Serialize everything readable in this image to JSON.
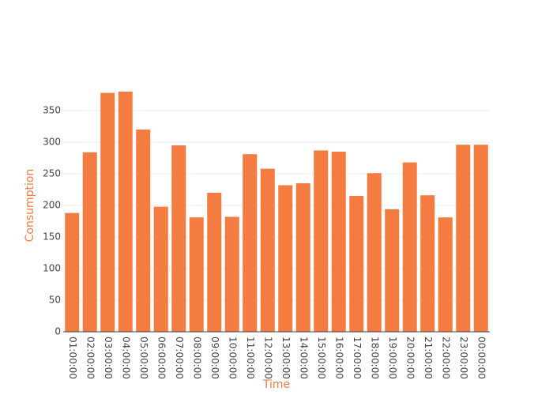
{
  "chart_data": {
    "type": "bar",
    "x_label": "Time",
    "y_label": "Consumption",
    "categories": [
      "01:00:00",
      "02:00:00",
      "03:00:00",
      "04:00:00",
      "05:00:00",
      "06:00:00",
      "07:00:00",
      "08:00:00",
      "09:00:00",
      "10:00:00",
      "11:00:00",
      "12:00:00",
      "13:00:00",
      "14:00:00",
      "15:00:00",
      "16:00:00",
      "17:00:00",
      "18:00:00",
      "19:00:00",
      "20:00:00",
      "21:00:00",
      "22:00:00",
      "23:00:00",
      "00:00:00"
    ],
    "values": [
      188,
      284,
      378,
      380,
      320,
      198,
      295,
      181,
      220,
      182,
      281,
      258,
      232,
      235,
      287,
      285,
      215,
      251,
      194,
      268,
      216,
      181,
      296,
      296
    ],
    "color": "#f57c41",
    "ylim": [
      0,
      400
    ],
    "yticks": [
      0,
      50,
      100,
      150,
      200,
      250,
      300,
      350
    ],
    "grid": true
  }
}
